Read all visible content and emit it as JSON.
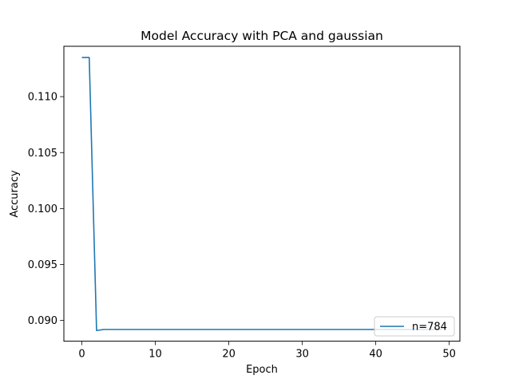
{
  "chart_data": {
    "type": "line",
    "title": "Model Accuracy with PCA and gaussian",
    "xlabel": "Epoch",
    "ylabel": "Accuracy",
    "xlim": [
      -2.45,
      51.45
    ],
    "ylim": [
      0.08815,
      0.1145
    ],
    "xticks": [
      0,
      10,
      20,
      30,
      40,
      50
    ],
    "xtick_labels": [
      "0",
      "10",
      "20",
      "30",
      "40",
      "50"
    ],
    "yticks": [
      0.09,
      0.095,
      0.1,
      0.105,
      0.11
    ],
    "ytick_labels": [
      "0.090",
      "0.095",
      "0.100",
      "0.105",
      "0.110"
    ],
    "grid": false,
    "legend_position": "lower-right",
    "series": [
      {
        "name": "n=784",
        "color": "#1f77b4",
        "x": [
          0,
          1,
          2,
          3,
          4,
          5,
          6,
          7,
          8,
          9,
          10,
          11,
          12,
          13,
          14,
          15,
          16,
          17,
          18,
          19,
          20,
          21,
          22,
          23,
          24,
          25,
          26,
          27,
          28,
          29,
          30,
          31,
          32,
          33,
          34,
          35,
          36,
          37,
          38,
          39,
          40,
          41,
          42,
          43,
          44,
          45,
          46,
          47,
          48,
          49
        ],
        "y": [
          0.1135,
          0.1135,
          0.0891,
          0.0892,
          0.0892,
          0.0892,
          0.0892,
          0.0892,
          0.0892,
          0.0892,
          0.0892,
          0.0892,
          0.0892,
          0.0892,
          0.0892,
          0.0892,
          0.0892,
          0.0892,
          0.0892,
          0.0892,
          0.0892,
          0.0892,
          0.0892,
          0.0892,
          0.0892,
          0.0892,
          0.0892,
          0.0892,
          0.0892,
          0.0892,
          0.0892,
          0.0892,
          0.0892,
          0.0892,
          0.0892,
          0.0892,
          0.0892,
          0.0892,
          0.0892,
          0.0892,
          0.0892,
          0.0892,
          0.0892,
          0.0892,
          0.0892,
          0.0892,
          0.0892,
          0.0892,
          0.0892,
          0.0892
        ]
      }
    ]
  }
}
